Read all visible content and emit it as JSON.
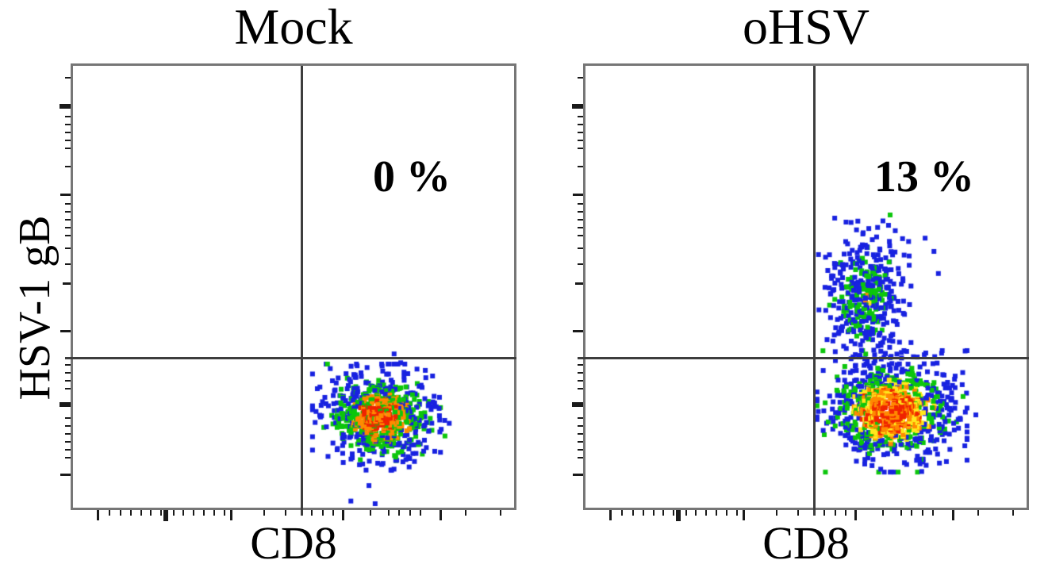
{
  "figure": {
    "y_axis_label": "HSV-1 gB",
    "panels": [
      {
        "title": "Mock",
        "x_axis_label": "CD8",
        "percent_label": "0 %"
      },
      {
        "title": "oHSV",
        "x_axis_label": "CD8",
        "percent_label": "13 %"
      }
    ]
  },
  "style": {
    "background_color": "#ffffff",
    "plot_border_color": "#767676",
    "quadrant_line_color": "#3d3d3d",
    "tick_color": "#1a1a1a",
    "text_color": "#000000"
  },
  "axis_ticks": {
    "y": [
      [
        0.027,
        "s"
      ],
      [
        0.092,
        "b"
      ],
      [
        0.115,
        "s"
      ],
      [
        0.133,
        "s"
      ],
      [
        0.151,
        "s"
      ],
      [
        0.169,
        "s"
      ],
      [
        0.187,
        "s"
      ],
      [
        0.228,
        "s"
      ],
      [
        0.291,
        "l"
      ],
      [
        0.312,
        "s"
      ],
      [
        0.33,
        "s"
      ],
      [
        0.348,
        "s"
      ],
      [
        0.366,
        "s"
      ],
      [
        0.384,
        "s"
      ],
      [
        0.413,
        "s"
      ],
      [
        0.449,
        "s"
      ],
      [
        0.492,
        "m"
      ],
      [
        0.6,
        "l"
      ],
      [
        0.677,
        "s"
      ],
      [
        0.695,
        "s"
      ],
      [
        0.713,
        "s"
      ],
      [
        0.731,
        "s"
      ],
      [
        0.767,
        "b"
      ],
      [
        0.797,
        "s"
      ],
      [
        0.815,
        "s"
      ],
      [
        0.833,
        "s"
      ],
      [
        0.851,
        "s"
      ],
      [
        0.869,
        "s"
      ],
      [
        0.887,
        "s"
      ],
      [
        0.926,
        "l"
      ]
    ],
    "x": [
      [
        0.056,
        "l"
      ],
      [
        0.083,
        "s"
      ],
      [
        0.108,
        "s"
      ],
      [
        0.131,
        "s"
      ],
      [
        0.155,
        "s"
      ],
      [
        0.176,
        "s"
      ],
      [
        0.2,
        "s"
      ],
      [
        0.21,
        "b"
      ],
      [
        0.228,
        "s"
      ],
      [
        0.25,
        "s"
      ],
      [
        0.273,
        "s"
      ],
      [
        0.297,
        "s"
      ],
      [
        0.32,
        "s"
      ],
      [
        0.344,
        "s"
      ],
      [
        0.358,
        "l"
      ],
      [
        0.433,
        "s"
      ],
      [
        0.482,
        "s"
      ],
      [
        0.541,
        "s"
      ],
      [
        0.567,
        "s"
      ],
      [
        0.59,
        "s"
      ],
      [
        0.612,
        "l"
      ],
      [
        0.674,
        "s"
      ],
      [
        0.716,
        "s"
      ],
      [
        0.739,
        "s"
      ],
      [
        0.764,
        "s"
      ],
      [
        0.788,
        "s"
      ],
      [
        0.833,
        "l"
      ],
      [
        0.89,
        "s"
      ],
      [
        0.97,
        "s"
      ]
    ]
  },
  "chart_data": [
    {
      "type": "scatter",
      "subtype": "flow-cytometry-pseudocolor-dot-plot",
      "title": "Mock",
      "xlabel": "CD8",
      "ylabel": "HSV-1 gB",
      "axis_tick_labels": "none (unlabeled log-style axes)",
      "grid": false,
      "quadrant_gate_frac": {
        "x": 0.517,
        "y": 0.659
      },
      "gate_label": {
        "text": "0 %",
        "quadrant": "upper-right",
        "center_frac": [
          0.768,
          0.252
        ]
      },
      "palette_hex": {
        "blue": "#1822e0",
        "green": "#0cc60c",
        "yellow": "#ffe81c",
        "orange": "#ff8a00",
        "red": "#ef2400"
      },
      "clusters": [
        {
          "name": "CD8+ HSV-1 gB-negative population",
          "center_frac": [
            0.698,
            0.795
          ],
          "sd_frac": [
            0.062,
            0.048
          ],
          "n": 780,
          "heat": 0.78
        }
      ],
      "outliers_frac": [
        [
          0.671,
          0.95
        ],
        [
          0.63,
          0.985
        ],
        [
          0.685,
          0.991
        ],
        [
          0.728,
          0.652
        ],
        [
          0.743,
          0.672
        ]
      ]
    },
    {
      "type": "scatter",
      "subtype": "flow-cytometry-pseudocolor-dot-plot",
      "title": "oHSV",
      "xlabel": "CD8",
      "ylabel": "HSV-1 gB",
      "axis_tick_labels": "none (unlabeled log-style axes)",
      "grid": false,
      "quadrant_gate_frac": {
        "x": 0.516,
        "y": 0.657
      },
      "gate_label": {
        "text": "13 %",
        "quadrant": "upper-right",
        "center_frac": [
          0.766,
          0.248
        ]
      },
      "palette_hex": {
        "blue": "#1822e0",
        "green": "#0cc60c",
        "yellow": "#ffe81c",
        "orange": "#ff8a00",
        "red": "#ef2400"
      },
      "clusters": [
        {
          "name": "CD8+ HSV-1 gB-negative population",
          "center_frac": [
            0.695,
            0.782
          ],
          "sd_frac": [
            0.068,
            0.055
          ],
          "n": 980,
          "heat": 1.0
        },
        {
          "name": "CD8+ HSV-1 gB-positive population (13 %)",
          "center_frac": [
            0.633,
            0.525
          ],
          "sd_frac": [
            0.042,
            0.075
          ],
          "n": 430,
          "heat": 0.18
        }
      ],
      "outliers_frac": [
        [
          0.813,
          0.7
        ],
        [
          0.83,
          0.74
        ],
        [
          0.845,
          0.8
        ],
        [
          0.86,
          0.86
        ],
        [
          0.885,
          0.79
        ],
        [
          0.8,
          0.47
        ],
        [
          0.79,
          0.42
        ],
        [
          0.77,
          0.39
        ]
      ]
    }
  ]
}
